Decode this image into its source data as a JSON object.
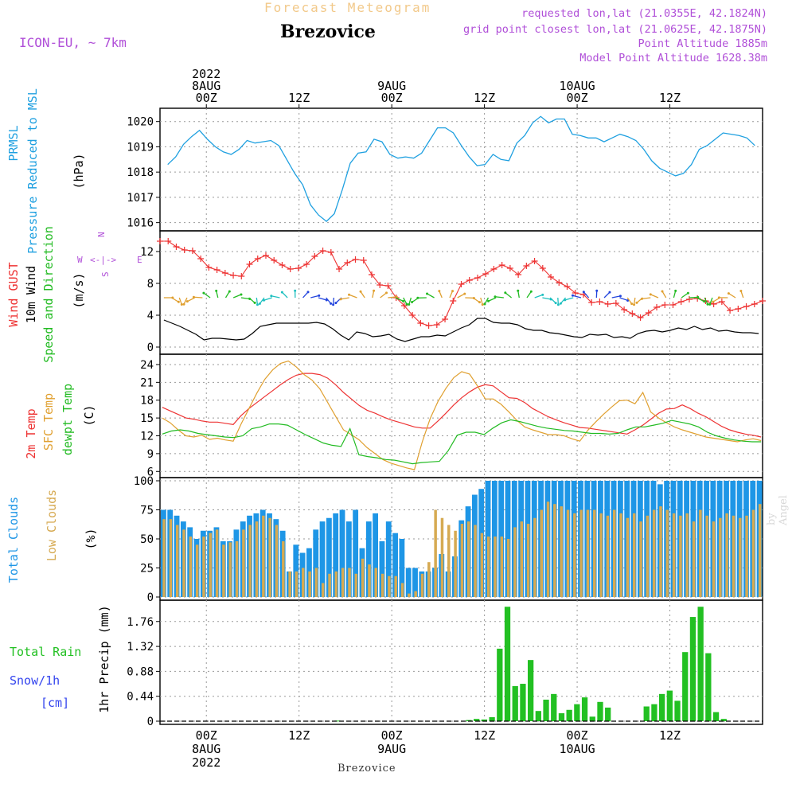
{
  "header": {
    "chart_title": "Forecast Meteogram",
    "station": "Brezovice",
    "model": "ICON-EU, ~ 7km",
    "requested": "requested lon,lat (21.0355E, 42.1824N)",
    "grid_point": "grid point closest lon,lat (21.0625E, 42.1875N)",
    "point_altitude": "Point Altitude 1885m",
    "model_altitude": "Model Point Altitude 1628.38m",
    "watermark": "by Angel",
    "footer": "Brezovice"
  },
  "colors": {
    "pressure": "#1fa0e0",
    "gust": "#ee3333",
    "wind": "#000000",
    "direction": "#22bb22",
    "temp2m": "#ee3333",
    "sfc_temp": "#e0a030",
    "dewpoint": "#22bb22",
    "total_clouds": "#1e96e6",
    "low_clouds": "#d6aa52",
    "rain": "#22c022",
    "snow": "#3344ee",
    "purple": "#b04fd8"
  },
  "time_axis": {
    "top_labels": [
      {
        "hour": 6,
        "lines": [
          "2022",
          "8AUG",
          "00Z"
        ]
      },
      {
        "hour": 18,
        "lines": [
          "12Z"
        ]
      },
      {
        "hour": 30,
        "lines": [
          "9AUG",
          "00Z"
        ]
      },
      {
        "hour": 42,
        "lines": [
          "12Z"
        ]
      },
      {
        "hour": 54,
        "lines": [
          "10AUG",
          "00Z"
        ]
      },
      {
        "hour": 66,
        "lines": [
          "12Z"
        ]
      }
    ],
    "bottom_labels": [
      {
        "hour": 6,
        "lines": [
          "00Z",
          "8AUG",
          "2022"
        ]
      },
      {
        "hour": 18,
        "lines": [
          "12Z"
        ]
      },
      {
        "hour": 30,
        "lines": [
          "00Z",
          "9AUG"
        ]
      },
      {
        "hour": 42,
        "lines": [
          "12Z"
        ]
      },
      {
        "hour": 54,
        "lines": [
          "00Z",
          "10AUG"
        ]
      },
      {
        "hour": 66,
        "lines": [
          "12Z"
        ]
      }
    ]
  },
  "chart_data": [
    {
      "type": "line",
      "panel": "pressure",
      "left_labels": [
        "PRMSL",
        "Pressure Reduced to MSL"
      ],
      "ylabel": "(hPa)",
      "ylim": [
        1015.8,
        1020.4
      ],
      "yticks": [
        1016,
        1017,
        1018,
        1019,
        1020
      ],
      "grid": true,
      "series": [
        {
          "key": "pressure",
          "values": [
            1018.3,
            1018.6,
            1019.1,
            1019.4,
            1019.65,
            1019.3,
            1019.0,
            1018.8,
            1018.7,
            1018.9,
            1019.25,
            1019.15,
            1019.2,
            1019.25,
            1019.05,
            1018.5,
            1017.95,
            1017.5,
            1016.7,
            1016.3,
            1016.05,
            1016.35,
            1017.3,
            1018.35,
            1018.75,
            1018.8,
            1019.3,
            1019.2,
            1018.7,
            1018.55,
            1018.6,
            1018.55,
            1018.75,
            1019.25,
            1019.75,
            1019.75,
            1019.55,
            1019.05,
            1018.6,
            1018.25,
            1018.3,
            1018.7,
            1018.5,
            1018.45,
            1019.15,
            1019.45,
            1019.95,
            1020.2,
            1019.95,
            1020.1,
            1020.1,
            1019.5,
            1019.45,
            1019.35,
            1019.35,
            1019.2,
            1019.35,
            1019.5,
            1019.4,
            1019.25,
            1018.9,
            1018.45,
            1018.15,
            1018.0,
            1017.85,
            1017.95,
            1018.3,
            1018.9,
            1019.05,
            1019.3,
            1019.55,
            1019.5,
            1019.45,
            1019.35,
            1019.05
          ]
        }
      ]
    },
    {
      "type": "line",
      "panel": "wind",
      "left_labels": [
        "Wind GUST",
        "10m Wind",
        "Speed and Direction"
      ],
      "ylabel": "(m/s)",
      "compass": {
        "north": "N",
        "south": "S",
        "west": "W",
        "east": "E"
      },
      "ylim": [
        -0.5,
        14.2
      ],
      "yticks": [
        0,
        4,
        8,
        12
      ],
      "grid": true,
      "series": [
        {
          "key": "gust",
          "values": [
            13.3,
            13.3,
            12.6,
            12.2,
            12.1,
            11.1,
            10.0,
            9.7,
            9.3,
            9.0,
            8.9,
            10.4,
            11.1,
            11.5,
            10.9,
            10.3,
            9.8,
            9.9,
            10.4,
            11.4,
            12.1,
            11.9,
            9.8,
            10.6,
            11.0,
            10.9,
            9.1,
            7.8,
            7.7,
            6.2,
            5.2,
            4.0,
            3.0,
            2.7,
            2.8,
            3.5,
            5.8,
            7.9,
            8.4,
            8.7,
            9.2,
            9.8,
            10.3,
            9.9,
            9.1,
            10.2,
            10.8,
            9.9,
            8.8,
            8.1,
            7.6,
            6.8,
            6.6,
            5.6,
            5.7,
            5.4,
            5.5,
            4.7,
            4.2,
            3.7,
            4.3,
            5.0,
            5.3,
            5.3,
            5.7,
            6.0,
            6.1,
            5.8,
            5.4,
            5.7,
            4.6,
            4.8,
            5.1,
            5.4,
            5.8
          ]
        },
        {
          "key": "wind",
          "values": [
            3.4,
            3.0,
            2.6,
            2.1,
            1.6,
            0.9,
            1.1,
            1.1,
            1.0,
            0.9,
            1.0,
            1.7,
            2.6,
            2.8,
            3.0,
            3.0,
            3.0,
            3.0,
            3.0,
            3.1,
            2.9,
            2.3,
            1.5,
            0.9,
            1.9,
            1.7,
            1.3,
            1.4,
            1.6,
            1.0,
            0.7,
            1.0,
            1.3,
            1.3,
            1.5,
            1.4,
            1.9,
            2.4,
            2.8,
            3.6,
            3.6,
            3.1,
            3.0,
            3.0,
            2.8,
            2.3,
            2.1,
            2.1,
            1.8,
            1.7,
            1.5,
            1.3,
            1.2,
            1.6,
            1.5,
            1.6,
            1.2,
            1.3,
            1.1,
            1.7,
            2.0,
            2.1,
            1.9,
            2.1,
            2.4,
            2.2,
            2.6,
            2.2,
            2.4,
            2.0,
            2.1,
            1.9,
            1.8,
            1.8,
            1.7
          ]
        }
      ],
      "arrow_level": 6.2
    },
    {
      "type": "line",
      "panel": "temperature",
      "left_labels": [
        "2m Temp",
        "SFC Temp",
        "dewpt Temp"
      ],
      "ylabel": "(C)",
      "ylim": [
        5.5,
        25.2
      ],
      "yticks": [
        6,
        9,
        12,
        15,
        18,
        21,
        24
      ],
      "grid": true,
      "series": [
        {
          "key": "temp2m",
          "values": [
            16.8,
            16.2,
            15.6,
            15.0,
            14.8,
            14.5,
            14.3,
            14.3,
            14.1,
            13.9,
            15.4,
            16.6,
            17.6,
            18.6,
            19.6,
            20.6,
            21.5,
            22.2,
            22.5,
            22.5,
            22.3,
            21.7,
            20.6,
            19.3,
            18.2,
            17.1,
            16.3,
            15.8,
            15.2,
            14.7,
            14.3,
            13.9,
            13.5,
            13.3,
            13.3,
            14.5,
            15.8,
            17.2,
            18.4,
            19.4,
            20.2,
            20.6,
            20.4,
            19.4,
            18.4,
            18.3,
            17.6,
            16.6,
            15.9,
            15.2,
            14.7,
            14.2,
            13.8,
            13.4,
            13.3,
            13.1,
            12.9,
            12.7,
            12.5,
            12.3,
            13.0,
            13.8,
            14.8,
            15.8,
            16.5,
            16.6,
            17.2,
            16.6,
            15.8,
            15.2,
            14.4,
            13.6,
            13.0,
            12.6,
            12.3,
            12.1,
            11.8
          ]
        },
        {
          "key": "sfc_temp",
          "values": [
            15.0,
            14.2,
            13.0,
            12.0,
            11.8,
            12.1,
            11.4,
            11.6,
            11.3,
            11.1,
            14.0,
            16.6,
            19.2,
            21.5,
            23.1,
            24.2,
            24.6,
            23.6,
            22.3,
            21.4,
            19.9,
            17.6,
            15.3,
            13.0,
            12.2,
            11.3,
            10.0,
            9.0,
            8.0,
            7.4,
            7.0,
            6.6,
            6.3,
            11.0,
            14.9,
            17.8,
            20.0,
            21.8,
            22.8,
            22.4,
            20.4,
            18.2,
            18.2,
            17.3,
            16.0,
            14.6,
            13.5,
            13.0,
            12.6,
            12.2,
            12.2,
            12.0,
            11.5,
            11.1,
            12.9,
            14.3,
            15.6,
            16.8,
            17.9,
            18.0,
            17.4,
            19.3,
            16.0,
            15.0,
            14.2,
            13.5,
            13.0,
            12.6,
            12.2,
            11.8,
            11.6,
            11.4,
            11.2,
            11.0,
            11.3,
            11.5,
            11.2
          ]
        },
        {
          "key": "dewpoint",
          "values": [
            12.3,
            12.8,
            13.0,
            12.8,
            12.4,
            12.2,
            12.0,
            11.8,
            11.7,
            12.0,
            13.2,
            13.5,
            14.0,
            14.0,
            13.8,
            13.0,
            12.2,
            11.5,
            10.8,
            10.4,
            10.2,
            13.2,
            8.8,
            8.5,
            8.3,
            8.0,
            7.9,
            7.6,
            7.3,
            7.5,
            7.6,
            7.7,
            9.5,
            12.1,
            12.6,
            12.6,
            12.2,
            13.3,
            14.2,
            14.7,
            14.4,
            14.0,
            13.6,
            13.3,
            13.1,
            12.9,
            12.8,
            12.6,
            12.4,
            12.4,
            12.3,
            12.4,
            13.0,
            13.5,
            13.5,
            13.8,
            14.1,
            14.6,
            14.3,
            14.0,
            13.5,
            12.6,
            12.0,
            11.6,
            11.3,
            11.1,
            11.0,
            11.0
          ]
        }
      ]
    },
    {
      "type": "bar",
      "panel": "clouds",
      "left_labels": [
        "Total Clouds",
        "Low Clouds"
      ],
      "ylabel": "(%)",
      "ylim": [
        0,
        100
      ],
      "yticks": [
        0,
        25,
        50,
        75,
        100
      ],
      "grid": true,
      "series": [
        {
          "key": "total_clouds",
          "values": [
            75,
            75,
            70,
            65,
            60,
            50,
            57,
            57,
            60,
            48,
            48,
            58,
            65,
            70,
            72,
            75,
            72,
            67,
            57,
            22,
            45,
            38,
            42,
            58,
            65,
            68,
            72,
            75,
            65,
            75,
            42,
            65,
            72,
            48,
            65,
            55,
            50,
            25,
            25,
            22,
            22,
            25,
            37,
            22,
            35,
            66,
            78,
            88,
            93,
            100,
            100,
            100,
            100,
            100,
            100,
            100,
            100,
            100,
            100,
            100,
            100,
            100,
            100,
            100,
            100,
            100,
            100,
            100,
            100,
            100,
            100,
            100,
            100,
            100,
            100,
            97,
            100,
            100,
            100,
            100,
            100,
            100,
            100,
            100,
            100,
            100,
            100,
            100,
            100,
            100,
            100
          ]
        },
        {
          "key": "low_clouds",
          "values": [
            67,
            67,
            62,
            58,
            52,
            45,
            52,
            55,
            58,
            45,
            47,
            48,
            58,
            62,
            65,
            70,
            68,
            62,
            48,
            22,
            22,
            25,
            22,
            25,
            12,
            20,
            22,
            25,
            25,
            20,
            33,
            28,
            25,
            20,
            18,
            18,
            12,
            3,
            5,
            20,
            30,
            75,
            68,
            62,
            57,
            63,
            65,
            62,
            55,
            52,
            52,
            52,
            50,
            60,
            65,
            63,
            68,
            75,
            82,
            80,
            78,
            75,
            72,
            75,
            75,
            75,
            72,
            70,
            75,
            72,
            68,
            72,
            65,
            70,
            75,
            78,
            75,
            72,
            70,
            72,
            65,
            75,
            70,
            65,
            68,
            72,
            70,
            68,
            70,
            75,
            80
          ]
        }
      ]
    },
    {
      "type": "bar",
      "panel": "precip",
      "left_labels": [
        "Total Rain",
        "Snow/1h",
        "[cm]"
      ],
      "ylabel": "1hr Precip (mm)",
      "ylim": [
        0,
        2.08
      ],
      "yticks": [
        0,
        0.44,
        0.88,
        1.32,
        1.76
      ],
      "grid": true,
      "series": [
        {
          "key": "rain",
          "values": [
            {
              "hour": 23,
              "value": 0.01
            },
            {
              "hour": 40,
              "value": 0.02
            },
            {
              "hour": 41,
              "value": 0.04
            },
            {
              "hour": 42,
              "value": 0.03
            },
            {
              "hour": 43,
              "value": 0.07
            },
            {
              "hour": 44,
              "value": 1.28
            },
            {
              "hour": 45,
              "value": 2.02
            },
            {
              "hour": 46,
              "value": 0.62
            },
            {
              "hour": 47,
              "value": 0.66
            },
            {
              "hour": 48,
              "value": 1.08
            },
            {
              "hour": 49,
              "value": 0.18
            },
            {
              "hour": 50,
              "value": 0.38
            },
            {
              "hour": 51,
              "value": 0.48
            },
            {
              "hour": 52,
              "value": 0.14
            },
            {
              "hour": 53,
              "value": 0.2
            },
            {
              "hour": 54,
              "value": 0.3
            },
            {
              "hour": 55,
              "value": 0.42
            },
            {
              "hour": 56,
              "value": 0.08
            },
            {
              "hour": 57,
              "value": 0.34
            },
            {
              "hour": 58,
              "value": 0.24
            },
            {
              "hour": 63,
              "value": 0.26
            },
            {
              "hour": 64,
              "value": 0.3
            },
            {
              "hour": 65,
              "value": 0.48
            },
            {
              "hour": 66,
              "value": 0.54
            },
            {
              "hour": 67,
              "value": 0.36
            },
            {
              "hour": 68,
              "value": 1.22
            },
            {
              "hour": 69,
              "value": 1.84
            },
            {
              "hour": 70,
              "value": 2.02
            },
            {
              "hour": 71,
              "value": 1.2
            },
            {
              "hour": 72,
              "value": 0.16
            },
            {
              "hour": 73,
              "value": 0.04
            }
          ]
        }
      ]
    }
  ]
}
